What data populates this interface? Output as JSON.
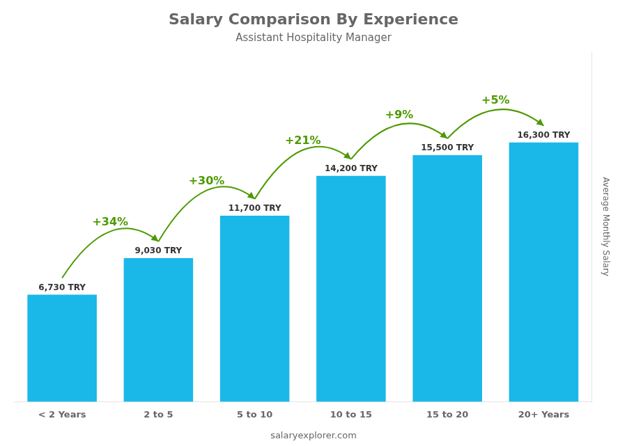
{
  "chart_data": {
    "type": "bar",
    "title": "Salary Comparison By Experience",
    "subtitle": "Assistant Hospitality Manager",
    "categories": [
      "< 2 Years",
      "2 to 5",
      "5 to 10",
      "10 to 15",
      "15 to 20",
      "20+ Years"
    ],
    "values": [
      6730,
      9030,
      11700,
      14200,
      15500,
      16300
    ],
    "value_labels": [
      "6,730 TRY",
      "9,030 TRY",
      "11,700 TRY",
      "14,200 TRY",
      "15,500 TRY",
      "16,300 TRY"
    ],
    "data_labels": true,
    "color": "#1ab8e8",
    "ylabel": "Average Monthly Salary",
    "ylim": [
      0,
      22000
    ],
    "tick_labels": "x",
    "grid": false,
    "annotations": [
      "+34%",
      "+30%",
      "+21%",
      "+9%",
      "+5%"
    ],
    "watermark": "salaryexplorer.com"
  }
}
